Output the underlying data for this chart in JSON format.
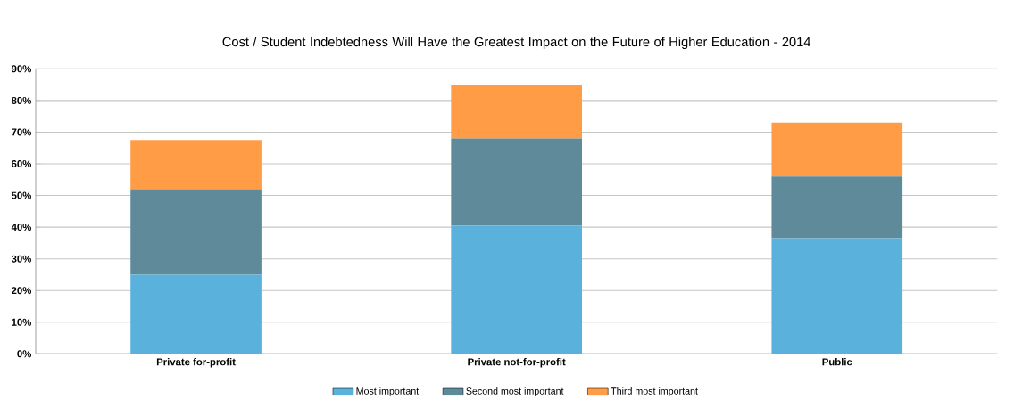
{
  "chart_data": {
    "type": "bar",
    "title": "Cost / Student Indebtedness Will Have the Greatest Impact on the Future of Higher Education - 2014",
    "categories": [
      "Private for-profit",
      "Private not-for-profit",
      "Public"
    ],
    "series": [
      {
        "name": "Most important",
        "color": "#5ab2dc",
        "values": [
          25,
          40.5,
          36.5
        ]
      },
      {
        "name": "Second most important",
        "color": "#5e8a9a",
        "values": [
          27,
          27.5,
          19.5
        ]
      },
      {
        "name": "Third most important",
        "color": "#ff9c45",
        "values": [
          15.5,
          17,
          17
        ]
      }
    ],
    "stacked": true,
    "ylim": [
      0,
      90
    ],
    "yticks": [
      {
        "value": 0,
        "label": "0%"
      },
      {
        "value": 10,
        "label": "10%"
      },
      {
        "value": 20,
        "label": "20%"
      },
      {
        "value": 30,
        "label": "30%"
      },
      {
        "value": 40,
        "label": "40%"
      },
      {
        "value": 50,
        "label": "50%"
      },
      {
        "value": 60,
        "label": "60%"
      },
      {
        "value": 70,
        "label": "70%"
      },
      {
        "value": 80,
        "label": "80%"
      },
      {
        "value": 90,
        "label": "90%"
      }
    ],
    "grid": "y",
    "legend": "bottom"
  }
}
